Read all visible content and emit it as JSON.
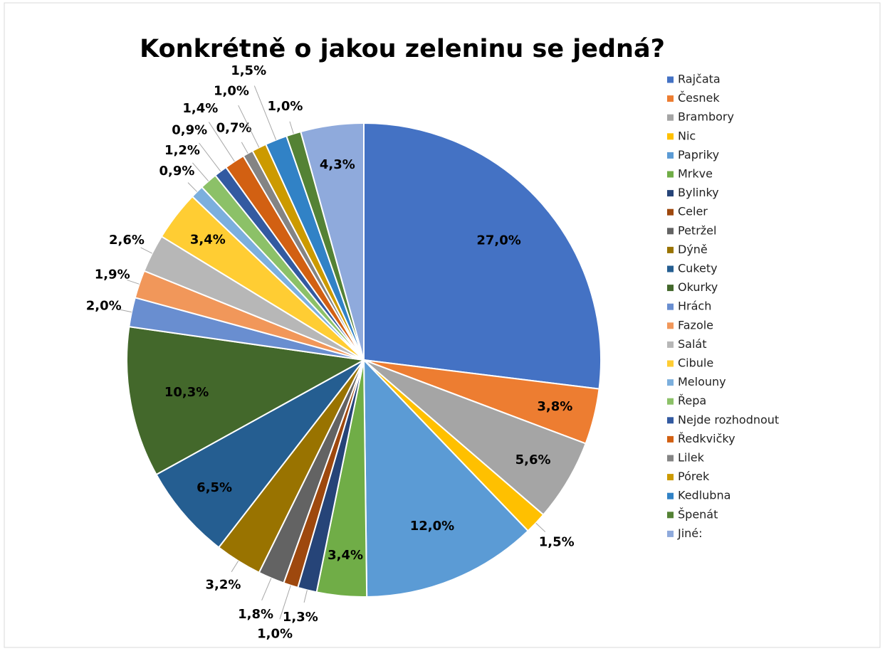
{
  "chart_data": {
    "type": "pie",
    "title": "Konkrétně o jakou zeleninu se jedná?",
    "categories": [
      "Rajčata",
      "Česnek",
      "Brambory",
      "Nic",
      "Papriky",
      "Mrkve",
      "Bylinky",
      "Celer",
      "Petržel",
      "Dýně",
      "Cukety",
      "Okurky",
      "Hrách",
      "Fazole",
      "Salát",
      "Cibule",
      "Melouny",
      "Řepa",
      "Nejde rozhodnout",
      "Ředkvičky",
      "Lilek",
      "Pórek",
      "Kedlubna",
      "Špenát",
      "Jiné:"
    ],
    "values": [
      27.0,
      3.8,
      5.6,
      1.5,
      12.0,
      3.4,
      1.3,
      1.0,
      1.8,
      3.2,
      6.5,
      10.3,
      2.0,
      1.9,
      2.6,
      3.4,
      0.9,
      1.2,
      0.9,
      1.4,
      0.7,
      1.0,
      1.5,
      1.0,
      4.3
    ],
    "value_labels": [
      "27,0%",
      "3,8%",
      "5,6%",
      "1,5%",
      "12,0%",
      "3,4%",
      "1,3%",
      "1,0%",
      "1,8%",
      "3,2%",
      "6,5%",
      "10,3%",
      "2,0%",
      "1,9%",
      "2,6%",
      "3,4%",
      "0,9%",
      "1,2%",
      "0,9%",
      "1,4%",
      "0,7%",
      "1,0%",
      "1,5%",
      "1,0%",
      "4,3%"
    ],
    "colors": [
      "#4472C4",
      "#ED7D31",
      "#A5A5A5",
      "#FFC000",
      "#5B9BD5",
      "#70AD47",
      "#264478",
      "#9E480E",
      "#636363",
      "#997300",
      "#255E91",
      "#43682B",
      "#698ED0",
      "#F1975A",
      "#B7B7B7",
      "#FFCD33",
      "#7CAFDD",
      "#8CC168",
      "#335AA1",
      "#D26012",
      "#848484",
      "#CC9A00",
      "#3182C6",
      "#548235",
      "#8FAADC"
    ],
    "legend": "right"
  }
}
